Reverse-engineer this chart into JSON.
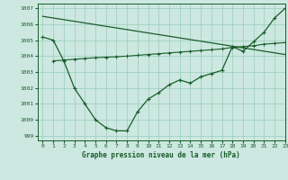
{
  "background_color": "#cce8e0",
  "grid_color": "#99ccbb",
  "line_color": "#1a5c2a",
  "title": "Graphe pression niveau de la mer (hPa)",
  "xlim": [
    -0.5,
    23
  ],
  "ylim": [
    998.7,
    1007.3
  ],
  "yticks": [
    999,
    1000,
    1001,
    1002,
    1003,
    1004,
    1005,
    1006,
    1007
  ],
  "xticks": [
    0,
    1,
    2,
    3,
    4,
    5,
    6,
    7,
    8,
    9,
    10,
    11,
    12,
    13,
    14,
    15,
    16,
    17,
    18,
    19,
    20,
    21,
    22,
    23
  ],
  "series1_x": [
    0,
    23
  ],
  "series1_y": [
    1006.5,
    1004.1
  ],
  "series2_x": [
    0,
    1,
    2,
    3,
    4,
    5,
    6,
    7,
    8,
    9,
    10,
    11,
    12,
    13,
    14,
    15,
    16,
    17,
    18,
    19,
    20,
    21,
    22,
    23
  ],
  "series2_y": [
    1005.2,
    1005.0,
    1003.7,
    1002.0,
    1001.0,
    1000.0,
    999.5,
    999.3,
    999.3,
    1000.5,
    1001.3,
    1001.7,
    1002.2,
    1002.5,
    1002.3,
    1002.7,
    1002.9,
    1003.1,
    1004.6,
    1004.3,
    1004.9,
    1005.5,
    1006.4,
    1007.0
  ],
  "series3_x": [
    1,
    2,
    3,
    4,
    5,
    6,
    7,
    8,
    9,
    10,
    11,
    12,
    13,
    14,
    15,
    16,
    17,
    18,
    19,
    20,
    21,
    22,
    23
  ],
  "series3_y": [
    1003.7,
    1003.75,
    1003.8,
    1003.85,
    1003.9,
    1003.93,
    1003.96,
    1004.0,
    1004.05,
    1004.1,
    1004.15,
    1004.2,
    1004.25,
    1004.3,
    1004.35,
    1004.4,
    1004.45,
    1004.55,
    1004.6,
    1004.65,
    1004.75,
    1004.8,
    1004.85
  ]
}
